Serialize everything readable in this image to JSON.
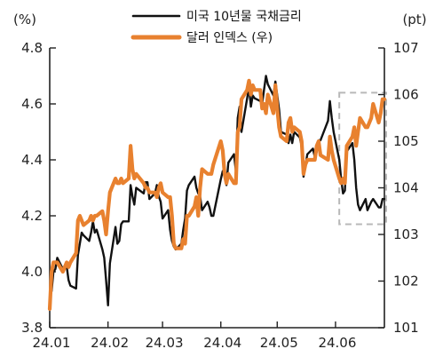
{
  "chart_data": {
    "type": "line",
    "colors": {
      "yield": "#111111",
      "dollar": "#e8812f",
      "highlight": "#b8b8b8",
      "axis": "#222222"
    },
    "legend": {
      "placement": "top-center"
    },
    "grid": false,
    "x": {
      "tick_labels": [
        "24.01",
        "24.02",
        "24.03",
        "24.04",
        "24.05",
        "24.06"
      ],
      "range": [
        "2024-01-01",
        "2024-06-27"
      ]
    },
    "y_left": {
      "unit": "(%)",
      "range": [
        3.8,
        4.8
      ],
      "ticks": [
        "3.8",
        "4.0",
        "4.2",
        "4.4",
        "4.6",
        "4.8"
      ]
    },
    "y_right": {
      "unit": "(pt)",
      "range": [
        101,
        107
      ],
      "ticks": [
        "101",
        "102",
        "103",
        "104",
        "105",
        "106",
        "107"
      ]
    },
    "highlight_box": {
      "from": "2024-06-03",
      "to": "2024-06-27",
      "ylow": 4.17,
      "yhigh": 4.64
    },
    "series": [
      {
        "name": "미국 10년물 국채금리",
        "key": "yield",
        "axis": "left",
        "points": [
          [
            "2024-01-02",
            3.93
          ],
          [
            "2024-01-03",
            4.0
          ],
          [
            "2024-01-04",
            4.01
          ],
          [
            "2024-01-05",
            4.05
          ],
          [
            "2024-01-08",
            4.01
          ],
          [
            "2024-01-09",
            4.02
          ],
          [
            "2024-01-10",
            4.02
          ],
          [
            "2024-01-11",
            3.97
          ],
          [
            "2024-01-12",
            3.95
          ],
          [
            "2024-01-15",
            3.94
          ],
          [
            "2024-01-16",
            4.06
          ],
          [
            "2024-01-17",
            4.1
          ],
          [
            "2024-01-18",
            4.14
          ],
          [
            "2024-01-19",
            4.13
          ],
          [
            "2024-01-22",
            4.11
          ],
          [
            "2024-01-23",
            4.14
          ],
          [
            "2024-01-24",
            4.18
          ],
          [
            "2024-01-25",
            4.14
          ],
          [
            "2024-01-26",
            4.15
          ],
          [
            "2024-01-29",
            4.08
          ],
          [
            "2024-01-30",
            4.05
          ],
          [
            "2024-01-31",
            3.97
          ],
          [
            "2024-02-01",
            3.88
          ],
          [
            "2024-02-02",
            4.03
          ],
          [
            "2024-02-05",
            4.16
          ],
          [
            "2024-02-06",
            4.1
          ],
          [
            "2024-02-07",
            4.11
          ],
          [
            "2024-02-08",
            4.17
          ],
          [
            "2024-02-09",
            4.18
          ],
          [
            "2024-02-12",
            4.18
          ],
          [
            "2024-02-13",
            4.31
          ],
          [
            "2024-02-14",
            4.27
          ],
          [
            "2024-02-15",
            4.24
          ],
          [
            "2024-02-16",
            4.3
          ],
          [
            "2024-02-20",
            4.28
          ],
          [
            "2024-02-21",
            4.32
          ],
          [
            "2024-02-22",
            4.32
          ],
          [
            "2024-02-23",
            4.26
          ],
          [
            "2024-02-26",
            4.28
          ],
          [
            "2024-02-27",
            4.31
          ],
          [
            "2024-02-28",
            4.27
          ],
          [
            "2024-02-29",
            4.25
          ],
          [
            "2024-03-01",
            4.19
          ],
          [
            "2024-03-04",
            4.22
          ],
          [
            "2024-03-05",
            4.15
          ],
          [
            "2024-03-06",
            4.11
          ],
          [
            "2024-03-07",
            4.09
          ],
          [
            "2024-03-08",
            4.08
          ],
          [
            "2024-03-11",
            4.1
          ],
          [
            "2024-03-12",
            4.15
          ],
          [
            "2024-03-13",
            4.19
          ],
          [
            "2024-03-14",
            4.29
          ],
          [
            "2024-03-15",
            4.31
          ],
          [
            "2024-03-18",
            4.34
          ],
          [
            "2024-03-19",
            4.3
          ],
          [
            "2024-03-20",
            4.28
          ],
          [
            "2024-03-21",
            4.27
          ],
          [
            "2024-03-22",
            4.22
          ],
          [
            "2024-03-25",
            4.25
          ],
          [
            "2024-03-26",
            4.23
          ],
          [
            "2024-03-27",
            4.2
          ],
          [
            "2024-03-28",
            4.2
          ],
          [
            "2024-04-01",
            4.33
          ],
          [
            "2024-04-02",
            4.36
          ],
          [
            "2024-04-03",
            4.36
          ],
          [
            "2024-04-04",
            4.31
          ],
          [
            "2024-04-05",
            4.39
          ],
          [
            "2024-04-08",
            4.42
          ],
          [
            "2024-04-09",
            4.36
          ],
          [
            "2024-04-10",
            4.55
          ],
          [
            "2024-04-11",
            4.59
          ],
          [
            "2024-04-12",
            4.5
          ],
          [
            "2024-04-15",
            4.62
          ],
          [
            "2024-04-16",
            4.66
          ],
          [
            "2024-04-17",
            4.59
          ],
          [
            "2024-04-18",
            4.63
          ],
          [
            "2024-04-19",
            4.62
          ],
          [
            "2024-04-22",
            4.61
          ],
          [
            "2024-04-23",
            4.6
          ],
          [
            "2024-04-24",
            4.65
          ],
          [
            "2024-04-25",
            4.7
          ],
          [
            "2024-04-26",
            4.67
          ],
          [
            "2024-04-29",
            4.63
          ],
          [
            "2024-04-30",
            4.68
          ],
          [
            "2024-05-01",
            4.63
          ],
          [
            "2024-05-02",
            4.58
          ],
          [
            "2024-05-03",
            4.5
          ],
          [
            "2024-05-06",
            4.49
          ],
          [
            "2024-05-07",
            4.46
          ],
          [
            "2024-05-08",
            4.49
          ],
          [
            "2024-05-09",
            4.46
          ],
          [
            "2024-05-10",
            4.5
          ],
          [
            "2024-05-13",
            4.48
          ],
          [
            "2024-05-14",
            4.45
          ],
          [
            "2024-05-15",
            4.34
          ],
          [
            "2024-05-16",
            4.38
          ],
          [
            "2024-05-17",
            4.42
          ],
          [
            "2024-05-20",
            4.44
          ],
          [
            "2024-05-21",
            4.41
          ],
          [
            "2024-05-22",
            4.43
          ],
          [
            "2024-05-23",
            4.47
          ],
          [
            "2024-05-24",
            4.47
          ],
          [
            "2024-05-28",
            4.54
          ],
          [
            "2024-05-29",
            4.61
          ],
          [
            "2024-05-30",
            4.55
          ],
          [
            "2024-05-31",
            4.5
          ],
          [
            "2024-06-03",
            4.4
          ],
          [
            "2024-06-04",
            4.33
          ],
          [
            "2024-06-05",
            4.28
          ],
          [
            "2024-06-06",
            4.29
          ],
          [
            "2024-06-07",
            4.43
          ],
          [
            "2024-06-10",
            4.46
          ],
          [
            "2024-06-11",
            4.4
          ],
          [
            "2024-06-12",
            4.3
          ],
          [
            "2024-06-13",
            4.24
          ],
          [
            "2024-06-14",
            4.22
          ],
          [
            "2024-06-17",
            4.26
          ],
          [
            "2024-06-18",
            4.22
          ],
          [
            "2024-06-20",
            4.25
          ],
          [
            "2024-06-21",
            4.26
          ],
          [
            "2024-06-24",
            4.23
          ],
          [
            "2024-06-25",
            4.23
          ],
          [
            "2024-06-26",
            4.26
          ],
          [
            "2024-06-27",
            4.26
          ]
        ]
      },
      {
        "name": "달러 인덱스 (우)",
        "key": "dollar",
        "axis": "right",
        "points": [
          [
            "2024-01-01",
            101.4
          ],
          [
            "2024-01-02",
            102.2
          ],
          [
            "2024-01-03",
            102.4
          ],
          [
            "2024-01-04",
            102.4
          ],
          [
            "2024-01-05",
            102.4
          ],
          [
            "2024-01-08",
            102.2
          ],
          [
            "2024-01-09",
            102.3
          ],
          [
            "2024-01-10",
            102.4
          ],
          [
            "2024-01-11",
            102.3
          ],
          [
            "2024-01-12",
            102.4
          ],
          [
            "2024-01-15",
            102.6
          ],
          [
            "2024-01-16",
            103.3
          ],
          [
            "2024-01-17",
            103.4
          ],
          [
            "2024-01-18",
            103.3
          ],
          [
            "2024-01-19",
            103.2
          ],
          [
            "2024-01-22",
            103.3
          ],
          [
            "2024-01-23",
            103.4
          ],
          [
            "2024-01-24",
            103.3
          ],
          [
            "2024-01-25",
            103.4
          ],
          [
            "2024-01-26",
            103.4
          ],
          [
            "2024-01-29",
            103.5
          ],
          [
            "2024-01-30",
            103.3
          ],
          [
            "2024-01-31",
            103.0
          ],
          [
            "2024-02-01",
            103.5
          ],
          [
            "2024-02-02",
            103.9
          ],
          [
            "2024-02-05",
            104.2
          ],
          [
            "2024-02-06",
            104.1
          ],
          [
            "2024-02-07",
            104.1
          ],
          [
            "2024-02-08",
            104.2
          ],
          [
            "2024-02-09",
            104.1
          ],
          [
            "2024-02-12",
            104.2
          ],
          [
            "2024-02-13",
            104.9
          ],
          [
            "2024-02-14",
            104.4
          ],
          [
            "2024-02-15",
            104.2
          ],
          [
            "2024-02-16",
            104.3
          ],
          [
            "2024-02-20",
            104.1
          ],
          [
            "2024-02-21",
            104.0
          ],
          [
            "2024-02-22",
            104.0
          ],
          [
            "2024-02-23",
            103.9
          ],
          [
            "2024-02-26",
            103.9
          ],
          [
            "2024-02-27",
            103.8
          ],
          [
            "2024-02-28",
            104.0
          ],
          [
            "2024-02-29",
            104.1
          ],
          [
            "2024-03-01",
            103.9
          ],
          [
            "2024-03-04",
            103.8
          ],
          [
            "2024-03-05",
            103.8
          ],
          [
            "2024-03-06",
            103.4
          ],
          [
            "2024-03-07",
            102.8
          ],
          [
            "2024-03-08",
            102.7
          ],
          [
            "2024-03-11",
            102.7
          ],
          [
            "2024-03-12",
            102.9
          ],
          [
            "2024-03-13",
            102.8
          ],
          [
            "2024-03-14",
            103.4
          ],
          [
            "2024-03-15",
            103.4
          ],
          [
            "2024-03-18",
            103.6
          ],
          [
            "2024-03-19",
            103.8
          ],
          [
            "2024-03-20",
            103.4
          ],
          [
            "2024-03-21",
            104.0
          ],
          [
            "2024-03-22",
            104.4
          ],
          [
            "2024-03-25",
            104.3
          ],
          [
            "2024-03-26",
            104.3
          ],
          [
            "2024-03-27",
            104.3
          ],
          [
            "2024-03-28",
            104.5
          ],
          [
            "2024-04-01",
            105.0
          ],
          [
            "2024-04-02",
            104.8
          ],
          [
            "2024-04-03",
            104.3
          ],
          [
            "2024-04-04",
            104.1
          ],
          [
            "2024-04-05",
            104.3
          ],
          [
            "2024-04-08",
            104.1
          ],
          [
            "2024-04-09",
            104.1
          ],
          [
            "2024-04-10",
            105.2
          ],
          [
            "2024-04-11",
            105.3
          ],
          [
            "2024-04-12",
            105.9
          ],
          [
            "2024-04-15",
            106.1
          ],
          [
            "2024-04-16",
            106.3
          ],
          [
            "2024-04-17",
            106.0
          ],
          [
            "2024-04-18",
            106.2
          ],
          [
            "2024-04-19",
            106.1
          ],
          [
            "2024-04-22",
            106.1
          ],
          [
            "2024-04-23",
            105.7
          ],
          [
            "2024-04-24",
            105.8
          ],
          [
            "2024-04-25",
            105.6
          ],
          [
            "2024-04-26",
            106.0
          ],
          [
            "2024-04-29",
            105.6
          ],
          [
            "2024-04-30",
            106.2
          ],
          [
            "2024-05-01",
            105.7
          ],
          [
            "2024-05-02",
            105.3
          ],
          [
            "2024-05-03",
            105.1
          ],
          [
            "2024-05-06",
            105.0
          ],
          [
            "2024-05-07",
            105.4
          ],
          [
            "2024-05-08",
            105.5
          ],
          [
            "2024-05-09",
            105.2
          ],
          [
            "2024-05-10",
            105.3
          ],
          [
            "2024-05-13",
            105.2
          ],
          [
            "2024-05-14",
            105.0
          ],
          [
            "2024-05-15",
            104.3
          ],
          [
            "2024-05-16",
            104.5
          ],
          [
            "2024-05-17",
            104.6
          ],
          [
            "2024-05-20",
            104.6
          ],
          [
            "2024-05-21",
            104.6
          ],
          [
            "2024-05-22",
            104.9
          ],
          [
            "2024-05-23",
            105.0
          ],
          [
            "2024-05-24",
            104.7
          ],
          [
            "2024-05-28",
            104.6
          ],
          [
            "2024-05-29",
            105.1
          ],
          [
            "2024-05-30",
            104.8
          ],
          [
            "2024-05-31",
            104.6
          ],
          [
            "2024-06-03",
            104.2
          ],
          [
            "2024-06-04",
            104.1
          ],
          [
            "2024-06-05",
            104.2
          ],
          [
            "2024-06-06",
            104.1
          ],
          [
            "2024-06-07",
            104.9
          ],
          [
            "2024-06-10",
            105.1
          ],
          [
            "2024-06-11",
            105.3
          ],
          [
            "2024-06-12",
            104.9
          ],
          [
            "2024-06-13",
            105.2
          ],
          [
            "2024-06-14",
            105.5
          ],
          [
            "2024-06-17",
            105.3
          ],
          [
            "2024-06-18",
            105.3
          ],
          [
            "2024-06-20",
            105.5
          ],
          [
            "2024-06-21",
            105.8
          ],
          [
            "2024-06-24",
            105.4
          ],
          [
            "2024-06-25",
            105.6
          ],
          [
            "2024-06-26",
            105.9
          ],
          [
            "2024-06-27",
            105.9
          ]
        ]
      }
    ]
  }
}
